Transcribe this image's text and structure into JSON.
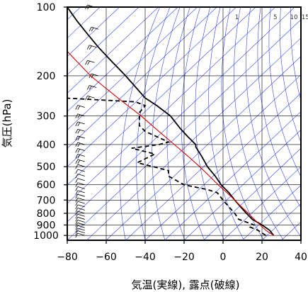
{
  "chart_data": {
    "type": "line",
    "title": "",
    "xlabel": "気温(実線), 露点(破線)",
    "ylabel": "気圧(hPa)",
    "xlim": [
      -80,
      40
    ],
    "ylim": [
      1050,
      100
    ],
    "yscale": "log",
    "grid": true,
    "x_ticks": [
      "−80",
      "−60",
      "−40",
      "−20",
      "0",
      "20",
      "40"
    ],
    "y_ticks": [
      "100",
      "200",
      "300",
      "400",
      "500",
      "600",
      "700",
      "800",
      "900",
      "1000"
    ],
    "mixing_ratio_labels": [
      "1",
      "5",
      "10",
      "15",
      "20g"
    ],
    "mixing_ratio_values": [
      1,
      5,
      10,
      15,
      20
    ],
    "series": [
      {
        "role": "temperature",
        "style": "solid",
        "color": "#000000",
        "points": [
          [
            26,
            1000
          ],
          [
            24,
            950
          ],
          [
            20,
            900
          ],
          [
            15,
            850
          ],
          [
            12,
            800
          ],
          [
            9,
            750
          ],
          [
            6,
            700
          ],
          [
            3,
            650
          ],
          [
            -1,
            600
          ],
          [
            -4,
            550
          ],
          [
            -8,
            500
          ],
          [
            -11,
            450
          ],
          [
            -14,
            410
          ],
          [
            -14,
            400
          ],
          [
            -18,
            370
          ],
          [
            -22,
            340
          ],
          [
            -27,
            300
          ],
          [
            -34,
            270
          ],
          [
            -40,
            250
          ],
          [
            -50,
            200
          ],
          [
            -58,
            170
          ],
          [
            -64,
            150
          ],
          [
            -70,
            130
          ],
          [
            -75,
            115
          ],
          [
            -80,
            100
          ]
        ]
      },
      {
        "role": "dewpoint",
        "style": "dashed",
        "color": "#000000",
        "points": [
          [
            22,
            1000
          ],
          [
            18,
            950
          ],
          [
            14,
            920
          ],
          [
            16,
            900
          ],
          [
            8,
            850
          ],
          [
            6,
            800
          ],
          [
            3,
            750
          ],
          [
            0,
            700
          ],
          [
            -3,
            650
          ],
          [
            -8,
            630
          ],
          [
            -20,
            600
          ],
          [
            -28,
            550
          ],
          [
            -28,
            520
          ],
          [
            -44,
            480
          ],
          [
            -35,
            440
          ],
          [
            -47,
            415
          ],
          [
            -33,
            400
          ],
          [
            -28,
            390
          ],
          [
            -40,
            350
          ],
          [
            -43,
            330
          ],
          [
            -43,
            290
          ],
          [
            -40,
            270
          ],
          [
            -45,
            260
          ],
          [
            -82,
            250
          ]
        ]
      },
      {
        "role": "parcel",
        "style": "solid",
        "color": "#dd0000",
        "points": [
          [
            26,
            1000
          ],
          [
            22,
            950
          ],
          [
            19,
            900
          ],
          [
            16,
            850
          ],
          [
            13,
            800
          ],
          [
            9.5,
            750
          ],
          [
            6,
            700
          ],
          [
            2,
            650
          ],
          [
            -2.5,
            600
          ],
          [
            -7,
            550
          ],
          [
            -12,
            500
          ],
          [
            -18,
            450
          ],
          [
            -25,
            400
          ],
          [
            -33,
            350
          ],
          [
            -42,
            300
          ],
          [
            -54,
            250
          ],
          [
            -68,
            200
          ],
          [
            -82,
            150
          ]
        ]
      }
    ],
    "wind_barb_levels_hPa": [
      1000,
      975,
      950,
      925,
      900,
      875,
      850,
      825,
      800,
      775,
      750,
      725,
      700,
      675,
      650,
      625,
      600,
      575,
      550,
      525,
      500,
      475,
      450,
      425,
      400,
      375,
      350,
      325,
      300,
      275,
      250,
      225,
      200,
      175,
      150,
      125,
      100
    ]
  }
}
